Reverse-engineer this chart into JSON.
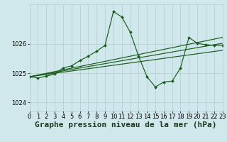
{
  "xlabel": "Graphe pression niveau de la mer (hPa)",
  "background_color": "#d0e8ec",
  "grid_color": "#b0ccd4",
  "line_color": "#1a5c1a",
  "xlim": [
    0,
    23
  ],
  "ylim": [
    1023.72,
    1027.35
  ],
  "yticks": [
    1024,
    1025,
    1026
  ],
  "xticks": [
    0,
    1,
    2,
    3,
    4,
    5,
    6,
    7,
    8,
    9,
    10,
    11,
    12,
    13,
    14,
    15,
    16,
    17,
    18,
    19,
    20,
    21,
    22,
    23
  ],
  "trend1_x": [
    0,
    23
  ],
  "trend1_y": [
    1024.88,
    1025.78
  ],
  "trend2_x": [
    0,
    23
  ],
  "trend2_y": [
    1024.88,
    1026.02
  ],
  "trend3_x": [
    0,
    23
  ],
  "trend3_y": [
    1024.88,
    1026.22
  ],
  "main_x": [
    0,
    1,
    2,
    3,
    4,
    5,
    6,
    7,
    8,
    9,
    10,
    11,
    12,
    13,
    14,
    15,
    16,
    17,
    18,
    19,
    20,
    21,
    22,
    23
  ],
  "main_y": [
    1024.88,
    1024.84,
    1024.9,
    1024.97,
    1025.18,
    1025.25,
    1025.43,
    1025.58,
    1025.75,
    1025.95,
    1027.1,
    1026.92,
    1026.4,
    1025.58,
    1024.88,
    1024.53,
    1024.7,
    1024.73,
    1025.18,
    1026.22,
    1026.02,
    1025.97,
    1025.95,
    1025.95
  ],
  "xlabel_fontsize": 8,
  "tick_fontsize": 6,
  "markersize": 2.0
}
